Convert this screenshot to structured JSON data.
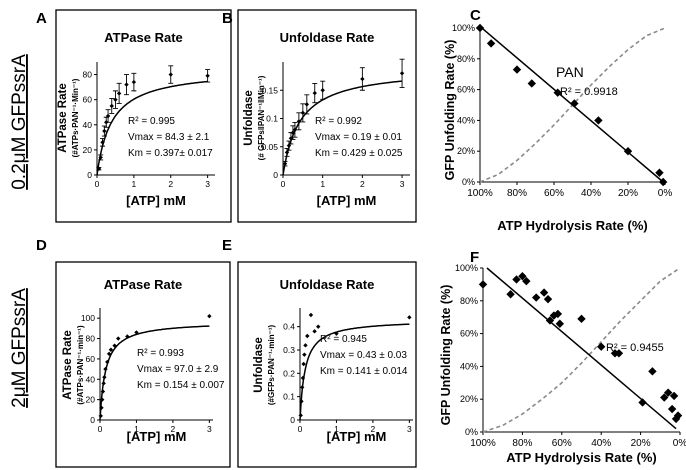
{
  "row_labels": [
    "0.2μM GFPssrA",
    "2μM GFPssrA"
  ],
  "chart_data": [
    {
      "id": "A",
      "type": "scatter",
      "title": "ATPase Rate",
      "xlabel": "[ATP] mM",
      "ylabel_lines": [
        "ATPase Rate",
        "(#ATPs·PAN⁻¹·Min⁻¹)"
      ],
      "xlim": [
        0,
        3.2
      ],
      "ylim": [
        0,
        90
      ],
      "xticks": [
        0,
        1,
        2,
        3
      ],
      "xtick_labels": [
        "0",
        "1",
        "2",
        "3"
      ],
      "yticks": [
        0,
        20,
        40,
        60,
        80
      ],
      "ytick_labels": [
        "0",
        "20",
        "40",
        "60",
        "80"
      ],
      "x": [
        0.05,
        0.1,
        0.15,
        0.2,
        0.25,
        0.3,
        0.4,
        0.5,
        0.6,
        0.8,
        1.0,
        2.0,
        3.0
      ],
      "y": [
        5,
        14,
        26,
        35,
        42,
        47,
        55,
        60,
        65,
        72,
        74,
        80,
        79
      ],
      "err": [
        1,
        2,
        3,
        4,
        4,
        5,
        6,
        7,
        8,
        8,
        7,
        7,
        5
      ],
      "fit": {
        "model": "michaelis_menten",
        "vmax": 84.3,
        "km": 0.397
      },
      "annotations": [
        "R² = 0.995",
        "Vmax = 84.3 ± 2.1",
        "Km = 0.397± 0.017"
      ]
    },
    {
      "id": "B",
      "type": "scatter",
      "title": "Unfoldase Rate",
      "xlabel": "[ATP] mM",
      "ylabel_lines": [
        "Unfoldase",
        "(# GFPs‖PAN⁻¹‖Min⁻¹)"
      ],
      "xlim": [
        0,
        3.2
      ],
      "ylim": [
        0,
        0.2
      ],
      "xticks": [
        0,
        1,
        2,
        3
      ],
      "xtick_labels": [
        "0",
        "1",
        "2",
        "3"
      ],
      "yticks": [
        0,
        0.05,
        0.1,
        0.15
      ],
      "ytick_labels": [
        "0",
        "0.05",
        "0.1",
        "0.15"
      ],
      "x": [
        0.05,
        0.1,
        0.15,
        0.2,
        0.25,
        0.3,
        0.4,
        0.5,
        0.6,
        0.8,
        1.0,
        2.0,
        3.0
      ],
      "y": [
        0.02,
        0.04,
        0.052,
        0.065,
        0.075,
        0.08,
        0.095,
        0.11,
        0.125,
        0.145,
        0.15,
        0.17,
        0.18
      ],
      "err": [
        0.004,
        0.007,
        0.008,
        0.01,
        0.012,
        0.013,
        0.015,
        0.016,
        0.017,
        0.017,
        0.016,
        0.02,
        0.025
      ],
      "fit": {
        "model": "michaelis_menten",
        "vmax": 0.19,
        "km": 0.429
      },
      "annotations": [
        "R² = 0.992",
        "Vmax = 0.19 ± 0.01",
        "Km = 0.429 ± 0.025"
      ]
    },
    {
      "id": "C",
      "type": "scatter",
      "title": "",
      "xlabel": "ATP Hydrolysis Rate (%)",
      "ylabel_lines": [
        "GFP Unfolding Rate (%)"
      ],
      "xlim": [
        100,
        0
      ],
      "ylim": [
        0,
        100
      ],
      "xticks": [
        100,
        80,
        60,
        40,
        20,
        0
      ],
      "xtick_labels": [
        "100%",
        "80%",
        "60%",
        "40%",
        "20%",
        "0%"
      ],
      "yticks": [
        0,
        20,
        40,
        60,
        80,
        100
      ],
      "ytick_labels": [
        "0%",
        "20%",
        "40%",
        "60%",
        "80%",
        "100%"
      ],
      "x": [
        100,
        94,
        80,
        72,
        58,
        49,
        36,
        20,
        3,
        1
      ],
      "y": [
        100,
        90,
        73,
        64,
        58,
        51,
        40,
        20,
        6,
        0
      ],
      "fit": {
        "model": "linear",
        "x0": 100,
        "y0": 101,
        "x1": 1,
        "y1": 0
      },
      "reference": [
        [
          100,
          0
        ],
        [
          90,
          5
        ],
        [
          80,
          14
        ],
        [
          70,
          25
        ],
        [
          60,
          37
        ],
        [
          50,
          50
        ],
        [
          40,
          63
        ],
        [
          30,
          75
        ],
        [
          20,
          86
        ],
        [
          10,
          95
        ],
        [
          0,
          100
        ]
      ],
      "series_label": "PAN",
      "annotations": [
        "R² = 0.9918"
      ]
    },
    {
      "id": "D",
      "type": "scatter",
      "title": "ATPase Rate",
      "xlabel": "[ATP] mM",
      "ylabel_lines": [
        "ATPase Rate",
        "(#ATPs·PAN⁻¹·min⁻¹)"
      ],
      "xlim": [
        0,
        3.1
      ],
      "ylim": [
        0,
        110
      ],
      "xticks": [
        0,
        1,
        2,
        3
      ],
      "xtick_labels": [
        "0",
        "1",
        "2",
        "3"
      ],
      "yticks": [
        0,
        20,
        40,
        60,
        80,
        100
      ],
      "ytick_labels": [
        "0",
        "20",
        "40",
        "60",
        "80",
        "100"
      ],
      "x": [
        0.02,
        0.04,
        0.06,
        0.08,
        0.1,
        0.12,
        0.15,
        0.2,
        0.25,
        0.3,
        0.4,
        0.5,
        0.75,
        1.0,
        3.0
      ],
      "y": [
        4,
        12,
        20,
        28,
        36,
        42,
        50,
        57,
        65,
        69,
        73,
        80,
        82,
        86,
        102
      ],
      "fit": {
        "model": "michaelis_menten",
        "vmax": 97.0,
        "km": 0.154
      },
      "annotations": [
        "R² = 0.993",
        "Vmax = 97.0 ± 2.9",
        "Km = 0.154 ± 0.007"
      ]
    },
    {
      "id": "E",
      "type": "scatter",
      "title": "Unfoldase Rate",
      "xlabel": "[ATP] mM",
      "ylabel_lines": [
        "Unfoldase",
        "(#GFPs·PAN⁻¹·min⁻¹)"
      ],
      "xlim": [
        0,
        3.1
      ],
      "ylim": [
        0,
        0.48
      ],
      "xticks": [
        0,
        1,
        2,
        3
      ],
      "xtick_labels": [
        "0",
        "1",
        "2",
        "3"
      ],
      "yticks": [
        0,
        0.1,
        0.2,
        0.3,
        0.4
      ],
      "ytick_labels": [
        "0",
        "0.1",
        "0.2",
        "0.3",
        "0.4"
      ],
      "x": [
        0.02,
        0.04,
        0.06,
        0.08,
        0.1,
        0.12,
        0.15,
        0.2,
        0.3,
        0.4,
        0.5,
        1.0,
        3.0
      ],
      "y": [
        0.02,
        0.08,
        0.14,
        0.18,
        0.24,
        0.28,
        0.32,
        0.36,
        0.45,
        0.38,
        0.4,
        0.37,
        0.44
      ],
      "fit": {
        "model": "michaelis_menten",
        "vmax": 0.43,
        "km": 0.141
      },
      "annotations": [
        "R² = 0.945",
        "Vmax = 0.43 ± 0.03",
        "Km = 0.141 ± 0.014"
      ]
    },
    {
      "id": "F",
      "type": "scatter",
      "title": "",
      "xlabel": "ATP Hydrolysis Rate (%)",
      "ylabel_lines": [
        "GFP Unfolding Rate (%)"
      ],
      "xlim": [
        100,
        0
      ],
      "ylim": [
        0,
        100
      ],
      "xticks": [
        100,
        80,
        60,
        40,
        20,
        0
      ],
      "xtick_labels": [
        "100%",
        "80%",
        "60%",
        "40%",
        "20%",
        "0%"
      ],
      "yticks": [
        0,
        20,
        40,
        60,
        80,
        100
      ],
      "ytick_labels": [
        "0%",
        "20%",
        "40%",
        "60%",
        "80%",
        "100%"
      ],
      "x": [
        100,
        86,
        83,
        80,
        78,
        73,
        69,
        67,
        66,
        64,
        62,
        61,
        50,
        40,
        33,
        31,
        19,
        14,
        8,
        6,
        4,
        3,
        2,
        1
      ],
      "y": [
        90,
        84,
        93,
        95,
        92,
        82,
        85,
        81,
        68,
        71,
        72,
        66,
        69,
        52,
        48,
        48,
        18,
        37,
        21,
        24,
        14,
        22,
        8,
        10
      ],
      "fit": {
        "model": "linear",
        "x0": 98,
        "y0": 100,
        "x1": 2,
        "y1": 2
      },
      "reference": [
        [
          100,
          0
        ],
        [
          90,
          4
        ],
        [
          80,
          11
        ],
        [
          70,
          20
        ],
        [
          60,
          30
        ],
        [
          50,
          42
        ],
        [
          40,
          55
        ],
        [
          30,
          68
        ],
        [
          20,
          80
        ],
        [
          10,
          92
        ],
        [
          0,
          100
        ]
      ],
      "annotations": [
        "R² = 0.9455"
      ]
    }
  ]
}
